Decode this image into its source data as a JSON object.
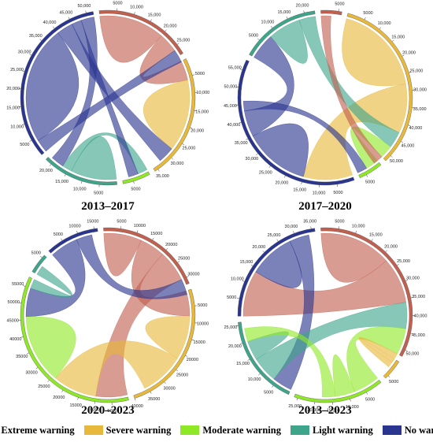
{
  "chart_data": [
    {
      "type": "chord",
      "title": "2013–2017",
      "groups": [
        {
          "name": "Extreme warning",
          "total": 28000,
          "ticks": [
            "5000",
            "10,000",
            "15,000",
            "20,000",
            "25,000"
          ]
        },
        {
          "name": "Severe warning",
          "total": 36000,
          "ticks": [
            "5000",
            "10,000",
            "15,000",
            "20,000",
            "25,000",
            "30,000",
            "35,000"
          ]
        },
        {
          "name": "Moderate warning",
          "total": 8000,
          "ticks": [
            "5000"
          ]
        },
        {
          "name": "Light warning",
          "total": 22000,
          "ticks": [
            "5000",
            "10,000",
            "15,000",
            "20,000"
          ]
        },
        {
          "name": "No warning",
          "total": 52000,
          "ticks": [
            "5000",
            "10,000",
            "15,000",
            "20,000",
            "25,000",
            "30,000",
            "35,000",
            "40,000",
            "45,000",
            "50,000"
          ]
        }
      ],
      "flows": [
        {
          "source": "Extreme warning",
          "target": "Extreme warning",
          "value": 20000
        },
        {
          "source": "Extreme warning",
          "target": "Severe warning",
          "value": 6000
        },
        {
          "source": "Severe warning",
          "target": "Severe warning",
          "value": 22000
        },
        {
          "source": "No warning",
          "target": "Extreme warning",
          "value": 4000
        },
        {
          "source": "No warning",
          "target": "No warning",
          "value": 36000
        },
        {
          "source": "No warning",
          "target": "Severe warning",
          "value": 5000
        },
        {
          "source": "Light warning",
          "target": "Light warning",
          "value": 14000
        },
        {
          "source": "Light warning",
          "target": "Moderate warning",
          "value": 3000
        },
        {
          "source": "No warning",
          "target": "Moderate warning",
          "value": 3000
        },
        {
          "source": "No warning",
          "target": "Light warning",
          "value": 4000
        }
      ]
    },
    {
      "type": "chord",
      "title": "2017–2020",
      "groups": [
        {
          "name": "Extreme warning",
          "total": 6000,
          "ticks": [
            "5000"
          ]
        },
        {
          "name": "Severe warning",
          "total": 52000,
          "ticks": [
            "5000",
            "10,000",
            "15,000",
            "20,000",
            "25,000",
            "30,000",
            "35,000",
            "40,000",
            "45,000",
            "50,000"
          ]
        },
        {
          "name": "Moderate warning",
          "total": 7000,
          "ticks": [
            "5000"
          ]
        },
        {
          "name": "No warning",
          "total": 58000,
          "ticks": [
            "5000",
            "10,000",
            "15,000",
            "20,000",
            "25,000",
            "30,000",
            "35,000",
            "40,000",
            "45,000",
            "50,000",
            "55,000"
          ]
        },
        {
          "name": "Light warning",
          "total": 23000,
          "ticks": [
            "5000",
            "10,000",
            "15,000",
            "20,000"
          ]
        }
      ],
      "flows": [
        {
          "source": "Severe warning",
          "target": "Severe warning",
          "value": 28000
        },
        {
          "source": "Severe warning",
          "target": "No warning",
          "value": 15000
        },
        {
          "source": "No warning",
          "target": "No warning",
          "value": 20000
        },
        {
          "source": "No warning",
          "target": "Light warning",
          "value": 8000
        },
        {
          "source": "Light warning",
          "target": "Light warning",
          "value": 10000
        },
        {
          "source": "Light warning",
          "target": "Severe warning",
          "value": 5000
        },
        {
          "source": "Moderate warning",
          "target": "Severe warning",
          "value": 4000
        },
        {
          "source": "Extreme warning",
          "target": "Severe warning",
          "value": 3000
        },
        {
          "source": "No warning",
          "target": "Moderate warning",
          "value": 3000
        }
      ]
    },
    {
      "type": "chord",
      "title": "2020–2023",
      "groups": [
        {
          "name": "Extreme warning",
          "total": 32000,
          "ticks": [
            "5000",
            "10000",
            "15000",
            "20000",
            "25000",
            "30000"
          ]
        },
        {
          "name": "Severe warning",
          "total": 40000,
          "ticks": [
            "5000",
            "10000",
            "15000",
            "20000",
            "25000",
            "30000",
            "35000",
            "40000"
          ]
        },
        {
          "name": "Moderate warning",
          "total": 58000,
          "ticks": [
            "5000",
            "10000",
            "15000",
            "20000",
            "25000",
            "30000",
            "35000",
            "40000",
            "45000",
            "50000",
            "55000"
          ]
        },
        {
          "name": "Light warning",
          "total": 6000,
          "ticks": [
            "5000"
          ]
        },
        {
          "name": "No warning",
          "total": 16000,
          "ticks": [
            "5000",
            "10000",
            "15000"
          ]
        }
      ],
      "flows": [
        {
          "source": "Extreme warning",
          "target": "Extreme warning",
          "value": 12000
        },
        {
          "source": "Extreme warning",
          "target": "Severe warning",
          "value": 8000
        },
        {
          "source": "Extreme warning",
          "target": "Moderate warning",
          "value": 10000
        },
        {
          "source": "Severe warning",
          "target": "Severe warning",
          "value": 14000
        },
        {
          "source": "Severe warning",
          "target": "Moderate warning",
          "value": 14000
        },
        {
          "source": "Moderate warning",
          "target": "Moderate warning",
          "value": 22000
        },
        {
          "source": "No warning",
          "target": "Moderate warning",
          "value": 9000
        },
        {
          "source": "No warning",
          "target": "Extreme warning",
          "value": 5000
        },
        {
          "source": "Light warning",
          "target": "Moderate warning",
          "value": 3000
        }
      ]
    },
    {
      "type": "chord",
      "title": "2013–2023",
      "groups": [
        {
          "name": "Extreme warning",
          "total": 52000,
          "ticks": [
            "5000",
            "10,000",
            "15,000",
            "20,000",
            "25,000",
            "30,000",
            "35,000",
            "40,000",
            "45,000",
            "50,000"
          ]
        },
        {
          "name": "Severe warning",
          "total": 6000,
          "ticks": [
            "5000"
          ]
        },
        {
          "name": "Moderate warning",
          "total": 26000,
          "ticks": [
            "5000",
            "10,000",
            "15,000",
            "20,000",
            "25,000"
          ]
        },
        {
          "name": "Light warning",
          "total": 26000,
          "ticks": [
            "5000",
            "10,000",
            "15,000",
            "20,000",
            "25,000"
          ]
        },
        {
          "name": "No warning",
          "total": 36000,
          "ticks": [
            "5000",
            "10,000",
            "15,000",
            "20,000",
            "25,000",
            "30,000",
            "35,000"
          ]
        }
      ],
      "flows": [
        {
          "source": "Extreme warning",
          "target": "Extreme warning",
          "value": 22000
        },
        {
          "source": "Extreme warning",
          "target": "No warning",
          "value": 14000
        },
        {
          "source": "No warning",
          "target": "No warning",
          "value": 14000
        },
        {
          "source": "No warning",
          "target": "Light warning",
          "value": 6000
        },
        {
          "source": "Light warning",
          "target": "Extreme warning",
          "value": 8000
        },
        {
          "source": "Light warning",
          "target": "Light warning",
          "value": 6000
        },
        {
          "source": "Moderate warning",
          "target": "Extreme warning",
          "value": 8000
        },
        {
          "source": "Moderate warning",
          "target": "Moderate warning",
          "value": 6000
        },
        {
          "source": "Moderate warning",
          "target": "Light warning",
          "value": 4000
        },
        {
          "source": "Severe warning",
          "target": "Extreme warning",
          "value": 3000
        }
      ]
    }
  ],
  "legend": [
    {
      "label": "Extreme warning",
      "color": "#c0604f"
    },
    {
      "label": "Severe warning",
      "color": "#e8b83a"
    },
    {
      "label": "Moderate warning",
      "color": "#8fe825"
    },
    {
      "label": "Light warning",
      "color": "#3ea58a"
    },
    {
      "label": "No warning",
      "color": "#2a3590"
    }
  ]
}
